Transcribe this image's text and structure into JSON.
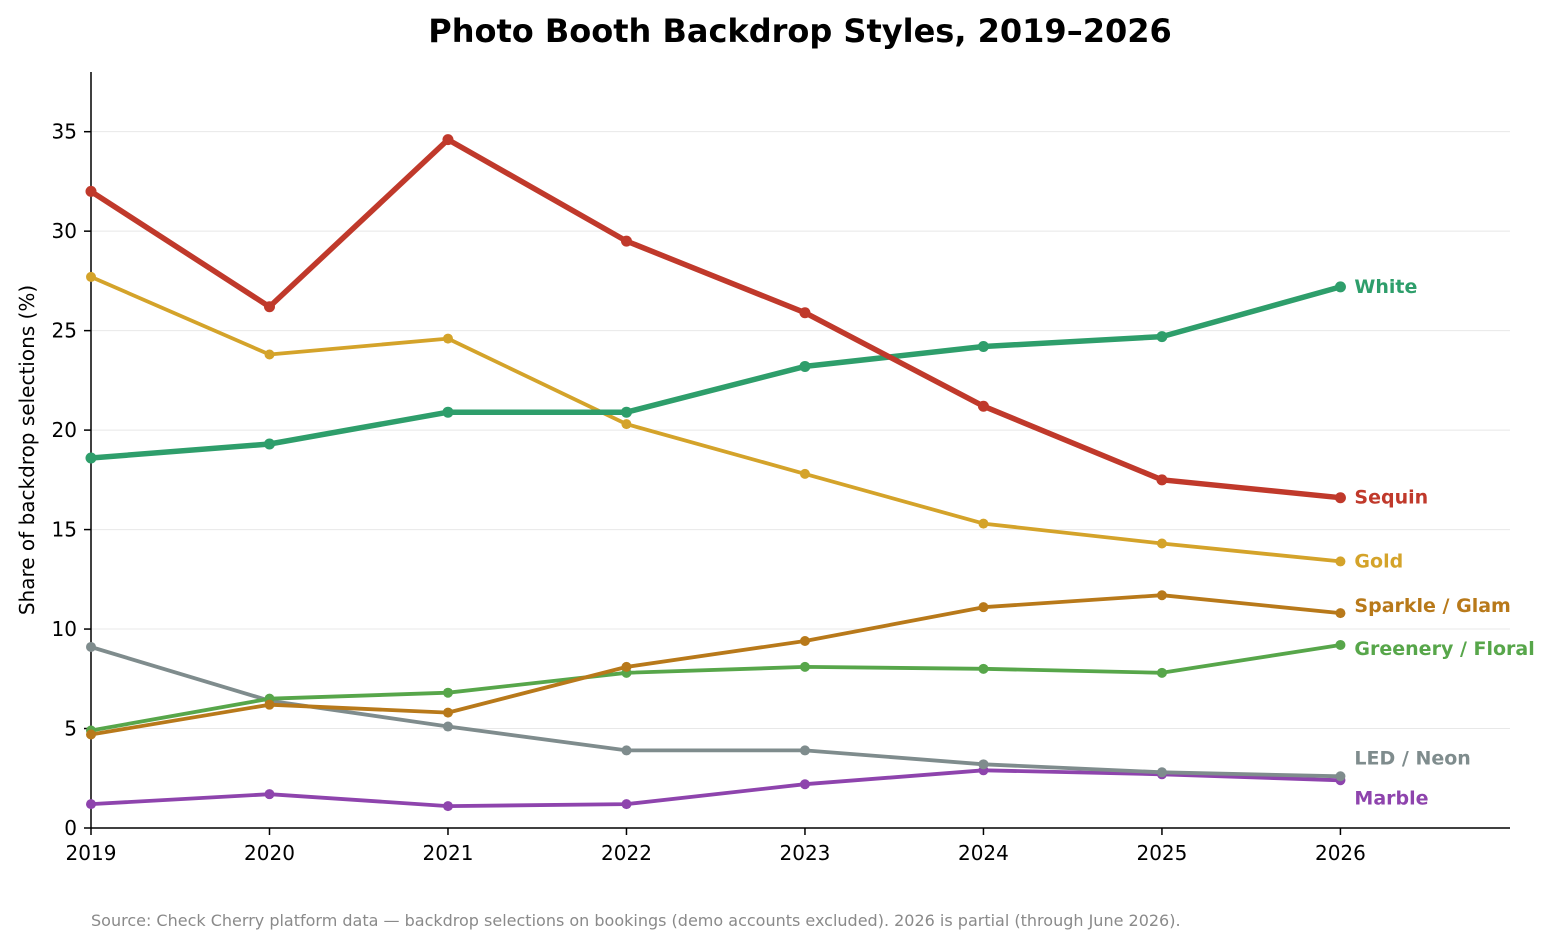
{
  "chart_data": {
    "type": "line",
    "title": "Photo Booth Backdrop Styles, 2019–2026",
    "xlabel": "",
    "ylabel": "Share of backdrop selections (%)",
    "x": [
      2019,
      2020,
      2021,
      2022,
      2023,
      2024,
      2025,
      2026
    ],
    "x_tick_labels": [
      "2019",
      "2020",
      "2021",
      "2022",
      "2023",
      "2024",
      "2025",
      "2026"
    ],
    "xlim": [
      2019,
      2026.95
    ],
    "ylim": [
      0,
      38
    ],
    "y_ticks": [
      0,
      5,
      10,
      15,
      20,
      25,
      30,
      35
    ],
    "y_tick_labels": [
      "0",
      "5",
      "10",
      "15",
      "20",
      "25",
      "30",
      "35"
    ],
    "grid": "horizontal",
    "legend": "direct labels at line ends",
    "series": [
      {
        "name": "Sequin",
        "color": "#c0392b",
        "values": [
          32.0,
          26.2,
          34.6,
          29.5,
          25.9,
          21.2,
          17.5,
          16.6
        ]
      },
      {
        "name": "White",
        "color": "#2e9e6b",
        "values": [
          18.6,
          19.3,
          20.9,
          20.9,
          23.2,
          24.2,
          24.7,
          27.2
        ]
      },
      {
        "name": "Gold",
        "color": "#d4a32a",
        "values": [
          27.7,
          23.8,
          24.6,
          20.3,
          17.8,
          15.3,
          14.3,
          13.4
        ]
      },
      {
        "name": "Sparkle / Glam",
        "color": "#b8791a",
        "values": [
          4.7,
          6.2,
          5.8,
          8.1,
          9.4,
          11.1,
          11.7,
          10.8
        ]
      },
      {
        "name": "Greenery / Floral",
        "color": "#57a64a",
        "values": [
          4.9,
          6.5,
          6.8,
          7.8,
          8.1,
          8.0,
          7.8,
          9.2
        ]
      },
      {
        "name": "LED / Neon",
        "color": "#7f8c8d",
        "values": [
          9.1,
          6.4,
          5.1,
          3.9,
          3.9,
          3.2,
          2.8,
          2.6
        ]
      },
      {
        "name": "Marble",
        "color": "#8e44ad",
        "values": [
          1.2,
          1.7,
          1.1,
          1.2,
          2.2,
          2.9,
          2.7,
          2.4
        ]
      }
    ],
    "source": "Source: Check Cherry platform data — backdrop selections on bookings (demo accounts excluded). 2026 is partial (through June 2026)."
  }
}
